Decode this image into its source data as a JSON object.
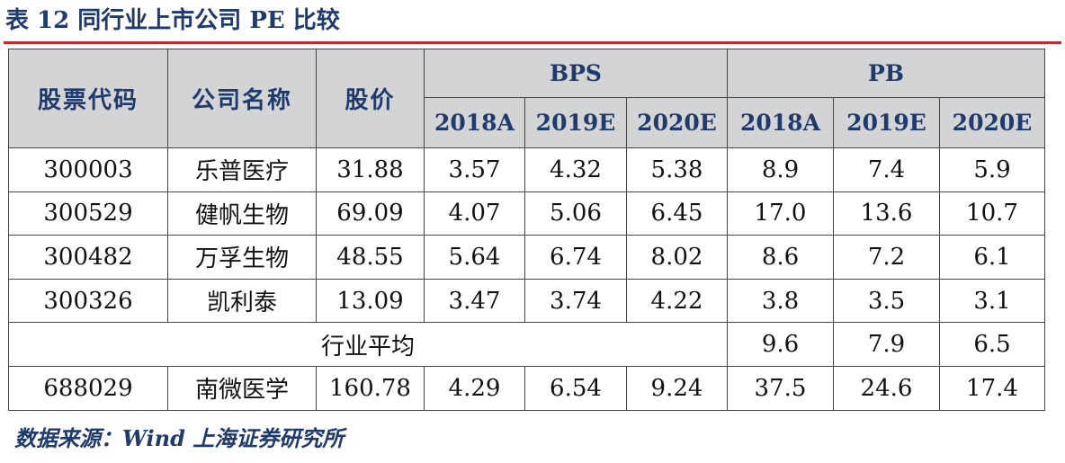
{
  "title": "表 12 同行业上市公司 PE 比较",
  "table": {
    "headers": {
      "code": "股票代码",
      "name": "公司名称",
      "price": "股价",
      "bps_group": "BPS",
      "pb_group": "PB",
      "years": [
        "2018A",
        "2019E",
        "2020E"
      ]
    },
    "rows": [
      {
        "code": "300003",
        "name": "乐普医疗",
        "price": "31.88",
        "bps": [
          "3.57",
          "4.32",
          "5.38"
        ],
        "pb": [
          "8.9",
          "7.4",
          "5.9"
        ]
      },
      {
        "code": "300529",
        "name": "健帆生物",
        "price": "69.09",
        "bps": [
          "4.07",
          "5.06",
          "6.45"
        ],
        "pb": [
          "17.0",
          "13.6",
          "10.7"
        ]
      },
      {
        "code": "300482",
        "name": "万孚生物",
        "price": "48.55",
        "bps": [
          "5.64",
          "6.74",
          "8.02"
        ],
        "pb": [
          "8.6",
          "7.2",
          "6.1"
        ]
      },
      {
        "code": "300326",
        "name": "凯利泰",
        "price": "13.09",
        "bps": [
          "3.47",
          "3.74",
          "4.22"
        ],
        "pb": [
          "3.8",
          "3.5",
          "3.1"
        ]
      }
    ],
    "average": {
      "label": "行业平均",
      "pb": [
        "9.6",
        "7.9",
        "6.5"
      ]
    },
    "target": {
      "code": "688029",
      "name": "南微医学",
      "price": "160.78",
      "bps": [
        "4.29",
        "6.54",
        "9.24"
      ],
      "pb": [
        "37.5",
        "24.6",
        "17.4"
      ]
    }
  },
  "source": "数据来源：Wind 上海证券研究所"
}
